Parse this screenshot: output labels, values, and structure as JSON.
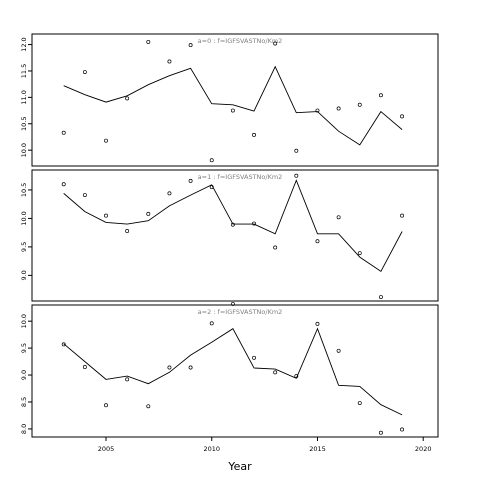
{
  "chart_data": {
    "type": "line",
    "layout": "stacked-panels",
    "xlabel": "Year",
    "xlim": [
      2001.5,
      2020.7
    ],
    "xticks": [
      2005,
      2010,
      2015,
      2020
    ],
    "marker": "open-circle",
    "panels": [
      {
        "title": "a=0  :  f=IGFSVASTNo/Km2",
        "ylim": [
          9.7,
          12.2
        ],
        "yticks": [
          10.0,
          10.5,
          11.0,
          11.5,
          12.0
        ],
        "yticklabels": [
          "10.0",
          "10.5",
          "11.0",
          "11.5",
          "12.0"
        ],
        "series": [
          {
            "kind": "points",
            "x": [
              2003,
              2004,
              2005,
              2006,
              2007,
              2008,
              2009,
              2010,
              2011,
              2012,
              2013,
              2014,
              2015,
              2016,
              2017,
              2018,
              2019
            ],
            "y": [
              10.33,
              11.48,
              10.18,
              10.98,
              12.05,
              11.68,
              11.99,
              9.81,
              10.75,
              10.29,
              12.02,
              9.99,
              10.75,
              10.79,
              10.86,
              11.04,
              10.64
            ]
          },
          {
            "kind": "line",
            "x": [
              2003,
              2004,
              2005,
              2006,
              2007,
              2008,
              2009,
              2010,
              2011,
              2012,
              2013,
              2014,
              2015,
              2016,
              2017,
              2018,
              2019
            ],
            "y": [
              11.22,
              11.05,
              10.91,
              11.03,
              11.24,
              11.41,
              11.55,
              10.88,
              10.86,
              10.74,
              11.58,
              10.71,
              10.73,
              10.36,
              10.1,
              10.73,
              10.39
            ]
          }
        ]
      },
      {
        "title": "a=1  :  f=IGFSVASTNo/Km2",
        "ylim": [
          8.55,
          10.85
        ],
        "yticks": [
          9.0,
          9.5,
          10.0,
          10.5
        ],
        "yticklabels": [
          "9.0",
          "9.5",
          "10.0",
          "10.5"
        ],
        "series": [
          {
            "kind": "points",
            "x": [
              2003,
              2004,
              2005,
              2006,
              2007,
              2008,
              2009,
              2010,
              2011,
              2012,
              2013,
              2014,
              2015,
              2016,
              2017,
              2018,
              2019
            ],
            "y": [
              10.6,
              10.41,
              10.05,
              9.78,
              10.08,
              10.44,
              10.66,
              10.55,
              9.89,
              9.91,
              9.49,
              10.75,
              9.6,
              10.02,
              9.39,
              8.62,
              10.05
            ]
          },
          {
            "kind": "line",
            "x": [
              2003,
              2004,
              2005,
              2006,
              2007,
              2008,
              2009,
              2010,
              2011,
              2012,
              2013,
              2014,
              2015,
              2016,
              2017,
              2018,
              2019
            ],
            "y": [
              10.44,
              10.12,
              9.93,
              9.9,
              9.96,
              10.22,
              10.41,
              10.59,
              9.9,
              9.9,
              9.73,
              10.67,
              9.73,
              9.73,
              9.32,
              9.07,
              9.77
            ]
          }
        ]
      },
      {
        "title": "a=2  :  f=IGFSVASTNo/Km2",
        "ylim": [
          7.85,
          10.3
        ],
        "yticks": [
          8.0,
          8.5,
          9.0,
          9.5,
          10.0
        ],
        "yticklabels": [
          "8.0",
          "8.5",
          "9.0",
          "9.5",
          "10.0"
        ],
        "series": [
          {
            "kind": "points",
            "x": [
              2003,
              2004,
              2005,
              2006,
              2007,
              2008,
              2009,
              2010,
              2011,
              2012,
              2013,
              2014,
              2015,
              2016,
              2017,
              2018,
              2019
            ],
            "y": [
              9.57,
              9.15,
              8.44,
              8.92,
              8.42,
              9.14,
              9.14,
              9.96,
              10.32,
              9.32,
              9.05,
              8.98,
              9.95,
              9.45,
              8.48,
              7.93,
              7.99
            ]
          },
          {
            "kind": "line",
            "x": [
              2003,
              2004,
              2005,
              2006,
              2007,
              2008,
              2009,
              2010,
              2011,
              2012,
              2013,
              2014,
              2015,
              2016,
              2017,
              2018,
              2019
            ],
            "y": [
              9.58,
              9.25,
              8.92,
              8.98,
              8.84,
              9.05,
              9.37,
              9.61,
              9.86,
              9.13,
              9.11,
              8.94,
              9.86,
              8.81,
              8.79,
              8.45,
              8.26
            ]
          }
        ]
      }
    ]
  }
}
